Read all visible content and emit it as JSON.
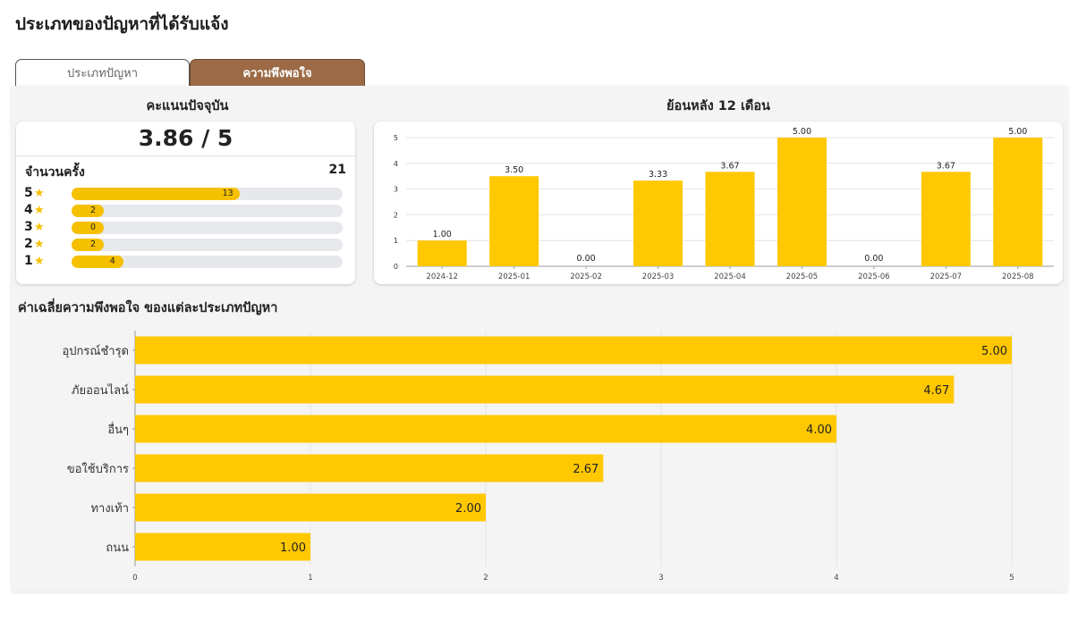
{
  "page": {
    "title": "ประเภทของปัญหาที่ได้รับแจ้ง"
  },
  "tabs": [
    {
      "label": "ประเภทปัญหา",
      "active": false
    },
    {
      "label": "ความพึงพอใจ",
      "active": true
    }
  ],
  "current_score": {
    "title": "คะแนนปัจจุบัน",
    "value": "3.86 / 5",
    "count_label": "จำนวนครั้ง",
    "count_total": "21",
    "ratings": [
      {
        "stars": "5",
        "count": 13
      },
      {
        "stars": "4",
        "count": 2
      },
      {
        "stars": "3",
        "count": 0
      },
      {
        "stars": "2",
        "count": 2
      },
      {
        "stars": "1",
        "count": 4
      }
    ]
  },
  "history": {
    "title": "ย้อนหลัง 12 เดือน"
  },
  "by_type": {
    "title": "ค่าเฉลี่ยความพึงพอใจ ของแต่ละประเภทปัญหา"
  },
  "colors": {
    "accent": "#f5c000",
    "bar": "#ffc800",
    "tab_active": "#9c6b46",
    "grid": "#e4e4e4"
  },
  "chart_data": [
    {
      "type": "bar",
      "title": "ย้อนหลัง 12 เดือน",
      "categories": [
        "2024-12",
        "2025-01",
        "2025-02",
        "2025-03",
        "2025-04",
        "2025-05",
        "2025-06",
        "2025-07",
        "2025-08"
      ],
      "values": [
        1.0,
        3.5,
        0.0,
        3.33,
        3.67,
        5.0,
        0.0,
        3.67,
        5.0
      ],
      "labels": [
        "1.00",
        "3.50",
        "0.00",
        "3.33",
        "3.67",
        "5.00",
        "0.00",
        "3.67",
        "5.00"
      ],
      "ylim": [
        0,
        5
      ],
      "yticks": [
        "0",
        "1",
        "2",
        "3",
        "4",
        "5"
      ],
      "grid": true
    },
    {
      "type": "bar",
      "orientation": "horizontal",
      "title": "ค่าเฉลี่ยความพึงพอใจ ของแต่ละประเภทปัญหา",
      "categories": [
        "อุปกรณ์ชำรุด",
        "ภัยออนไลน์",
        "อื่นๆ",
        "ขอใช้บริการ",
        "ทางเท้า",
        "ถนน"
      ],
      "values": [
        5.0,
        4.67,
        4.0,
        2.67,
        2.0,
        1.0
      ],
      "labels": [
        "5.00",
        "4.67",
        "4.00",
        "2.67",
        "2.00",
        "1.00"
      ],
      "xlim": [
        0,
        5
      ],
      "xticks": [
        "0",
        "1",
        "2",
        "3",
        "4",
        "5"
      ],
      "grid": true
    }
  ]
}
